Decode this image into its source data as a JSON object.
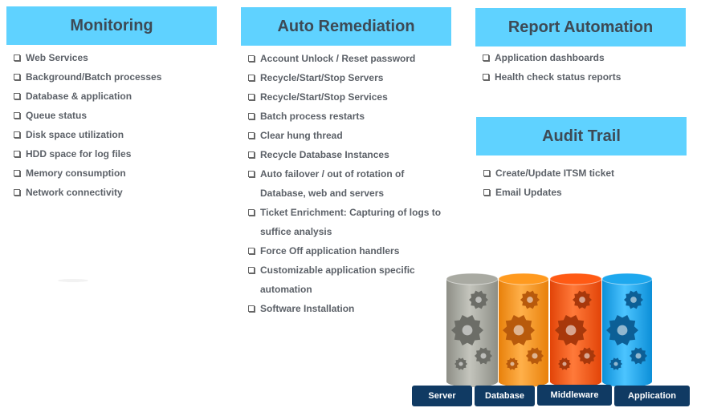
{
  "monitoring": {
    "title": "Monitoring",
    "items": [
      "Web Services",
      "Background/Batch processes",
      "Database & application",
      "Queue status",
      "Disk space utilization",
      "HDD space for log files",
      "Memory consumption",
      "Network connectivity"
    ]
  },
  "auto_remediation": {
    "title": "Auto Remediation",
    "items": [
      "Account Unlock / Reset password",
      "Recycle/Start/Stop Servers",
      "Recycle/Start/Stop Services",
      "Batch process restarts",
      "Clear hung thread",
      "Recycle Database Instances",
      "Auto failover / out of rotation of Database, web and servers",
      "Ticket Enrichment: Capturing of logs to suffice analysis",
      "Force Off application handlers",
      "Customizable application specific automation",
      "Software Installation"
    ]
  },
  "report_automation": {
    "title": "Report Automation",
    "items": [
      "Application dashboards",
      "Health check status reports"
    ]
  },
  "audit_trail": {
    "title": "Audit Trail",
    "items": [
      "Create/Update ITSM ticket",
      "Email Updates"
    ]
  },
  "stack": {
    "labels": [
      "Server",
      "Database",
      "Middleware",
      "Application"
    ],
    "colors": {
      "server": "#a9aaa2",
      "database": "#ff9a1f",
      "middleware": "#ff5a14",
      "application": "#1ea8ee",
      "label_bg": "#103a63",
      "header_bg": "#5fd2ff"
    }
  }
}
